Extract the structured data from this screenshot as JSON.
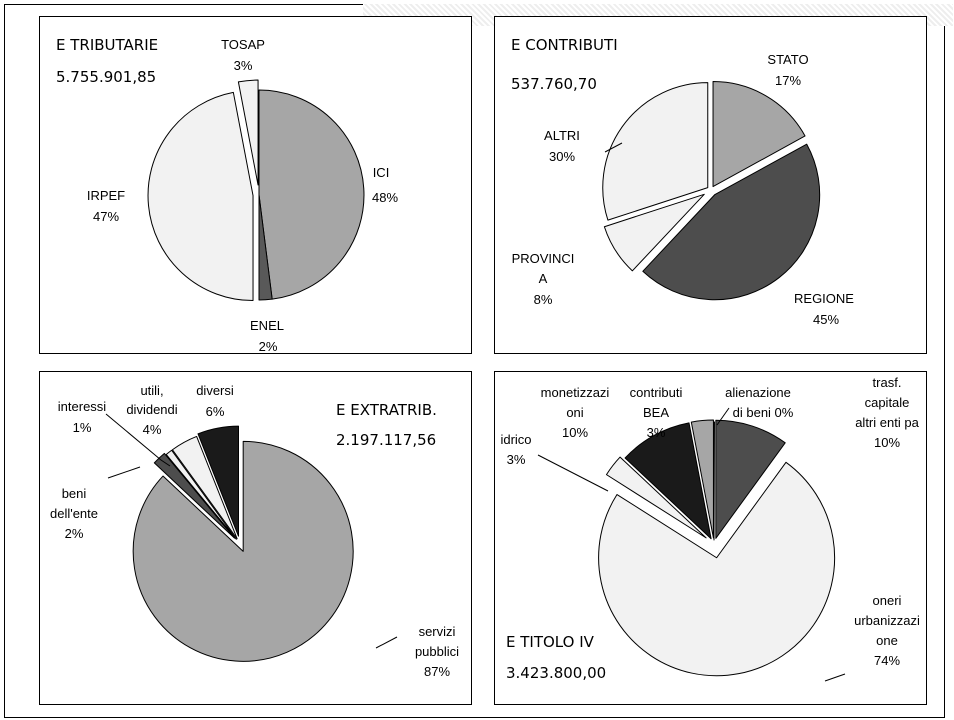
{
  "chart_data": [
    {
      "type": "pie",
      "title": "E TRIBUTARIE",
      "total": "5.755.901,85",
      "slices": [
        {
          "name": "ICI",
          "value": 48,
          "label": "48%",
          "color": "#a6a6a6",
          "explode": 0
        },
        {
          "name": "ENEL",
          "value": 2,
          "label": "2%",
          "color": "#595959",
          "explode": 0
        },
        {
          "name": "IRPEF",
          "value": 47,
          "label": "47%",
          "color": "#f2f2f2",
          "explode": 0
        },
        {
          "name": "TOSAP",
          "value": 3,
          "label": "3%",
          "color": "#f2f2f2",
          "explode": 0
        }
      ]
    },
    {
      "type": "pie",
      "title": "E CONTRIBUTI",
      "total": "537.760,70",
      "slices": [
        {
          "name": "STATO",
          "value": 17,
          "label": "17%",
          "color": "#a6a6a6",
          "explode": 0
        },
        {
          "name": "REGIONE",
          "value": 45,
          "label": "45%",
          "color": "#4d4d4d",
          "explode": 0
        },
        {
          "name": "PROVINCIA",
          "value": 8,
          "label": "8%",
          "color": "#f2f2f2",
          "explode": 0
        },
        {
          "name": "ALTRI",
          "value": 30,
          "label": "30%",
          "color": "#f2f2f2",
          "explode": 0
        }
      ]
    },
    {
      "type": "pie",
      "title": "E EXTRATRIB.",
      "total": "2.197.117,56",
      "slices": [
        {
          "name": "servizi pubblici",
          "value": 87,
          "label": "87%",
          "color": "#a6a6a6",
          "explode": 0
        },
        {
          "name": "beni dell'ente",
          "value": 2,
          "label": "2%",
          "color": "#4d4d4d",
          "explode": 0
        },
        {
          "name": "interessi",
          "value": 1,
          "label": "1%",
          "color": "#f2f2f2",
          "explode": 0
        },
        {
          "name": "utili, dividendi",
          "value": 4,
          "label": "4%",
          "color": "#f2f2f2",
          "explode": 0
        },
        {
          "name": "diversi",
          "value": 6,
          "label": "6%",
          "color": "#1a1a1a",
          "explode": 0
        }
      ]
    },
    {
      "type": "pie",
      "title": "E TITOLO IV",
      "total": "3.423.800,00",
      "slices": [
        {
          "name": "trasf. capitale altri enti pa",
          "value": 10,
          "label": "10%",
          "color": "#4d4d4d",
          "explode": 0
        },
        {
          "name": "oneri urbanizzazione",
          "value": 74,
          "label": "74%",
          "color": "#f2f2f2",
          "explode": 0
        },
        {
          "name": "idrico",
          "value": 3,
          "label": "3%",
          "color": "#f2f2f2",
          "explode": 0
        },
        {
          "name": "monetizzazioni",
          "value": 10,
          "label": "10%",
          "color": "#1a1a1a",
          "explode": 0
        },
        {
          "name": "contributi BEA",
          "value": 3,
          "label": "3%",
          "color": "#a6a6a6",
          "explode": 0
        },
        {
          "name": "alienazione di beni",
          "value": 0,
          "label": "0%",
          "color": "#ffffff",
          "explode": 0
        }
      ]
    }
  ],
  "labels": {
    "p0": {
      "title": "E TRIBUTARIE",
      "total": "5.755.901,85",
      "ici_name": "ICI",
      "ici_pct": "48%",
      "enel_name": "ENEL",
      "enel_pct": "2%",
      "irpef_name": "IRPEF",
      "irpef_pct": "47%",
      "tosap_name": "TOSAP",
      "tosap_pct": "3%"
    },
    "p1": {
      "title": "E CONTRIBUTI",
      "total": "537.760,70",
      "stato_name": "STATO",
      "stato_pct": "17%",
      "regione_name": "REGIONE",
      "regione_pct": "45%",
      "prov_l1": "PROVINCI",
      "prov_l2": "A",
      "prov_pct": "8%",
      "altri_name": "ALTRI",
      "altri_pct": "30%"
    },
    "p2": {
      "title": "E EXTRATRIB.",
      "total": "2.197.117,56",
      "int_name": "interessi",
      "int_pct": "1%",
      "utili_l1": "utili,",
      "utili_l2": "dividendi",
      "utili_pct": "4%",
      "div_name": "diversi",
      "div_pct": "6%",
      "beni_l1": "beni",
      "beni_l2": "dell'ente",
      "beni_pct": "2%",
      "serv_l1": "servizi",
      "serv_l2": "pubblici",
      "serv_pct": "87%"
    },
    "p3": {
      "title": "E TITOLO IV",
      "total": "3.423.800,00",
      "mon_l1": "monetizzazi",
      "mon_l2": "oni",
      "mon_pct": "10%",
      "bea_l1": "contributi",
      "bea_l2": "BEA",
      "bea_pct": "3%",
      "alien_l1": "alienazione",
      "alien_l2": "di beni  0%",
      "trasf_l1": "trasf.",
      "trasf_l2": "capitale",
      "trasf_l3": "altri enti pa",
      "trasf_pct": "10%",
      "idr_name": "idrico",
      "idr_pct": "3%",
      "oneri_l1": "oneri",
      "oneri_l2": "urbanizzazi",
      "oneri_l3": "one",
      "oneri_pct": "74%"
    }
  }
}
